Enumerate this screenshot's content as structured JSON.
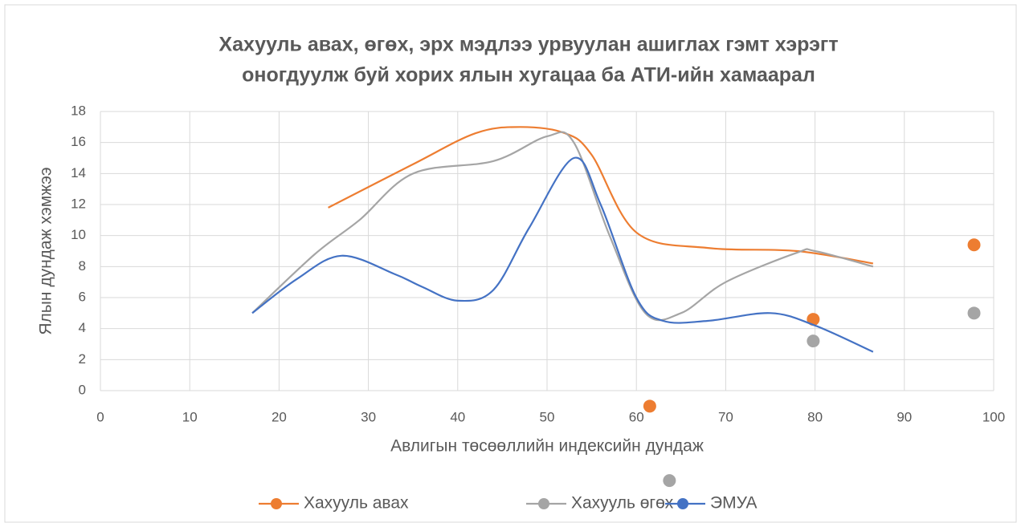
{
  "chart_data": {
    "type": "scatter",
    "title": [
      "Хахууль авах, өгөх, эрх мэдлээ урвуулан ашиглах гэмт хэрэгт",
      "оногдуулж буй хорих ялын хугацаа ба АТИ-ийн хамаарал"
    ],
    "x_label": "Авлигын төсөөллийн индексийн дундаж",
    "y_label": "Ялын дундаж хэмжээ",
    "xlim": [
      0,
      100
    ],
    "xticks": [
      0,
      10,
      20,
      30,
      40,
      50,
      60,
      70,
      80,
      90,
      100
    ],
    "ylim": [
      0,
      18
    ],
    "yticks": [
      0,
      2,
      4,
      6,
      8,
      10,
      12,
      14,
      16,
      18
    ],
    "grid": true,
    "smooth": true,
    "legend": "bottom",
    "series": [
      {
        "name": "Хахууль авах",
        "color": "#ed7d31",
        "x": [
          25.5,
          35,
          42,
          47,
          52,
          55,
          60,
          68,
          78,
          86.5
        ],
        "values": [
          11.8,
          14.6,
          16.6,
          17,
          16.6,
          15.2,
          10.2,
          9.2,
          9,
          8.2
        ],
        "marker_x": [
          61.5,
          79.8,
          97.8
        ],
        "marker_values": [
          -1,
          4.6,
          9.4
        ]
      },
      {
        "name": "Хахууль өгөх",
        "color": "#a5a5a5",
        "x": [
          17,
          24,
          29,
          35,
          44,
          50,
          53,
          57,
          61,
          65,
          70,
          78,
          80,
          86.5
        ],
        "values": [
          5,
          8.8,
          11,
          14,
          14.8,
          16.4,
          16,
          10,
          5,
          5,
          7,
          8.9,
          9,
          8
        ],
        "marker_x": [
          79.8,
          97.8,
          63.7
        ],
        "marker_values": [
          3.2,
          5,
          -5.8
        ]
      },
      {
        "name": "ЭМУА",
        "color": "#4472c4",
        "x": [
          17,
          22,
          27,
          33,
          36,
          40,
          44,
          48,
          53,
          56,
          60,
          63,
          68,
          75,
          80,
          86.5
        ],
        "values": [
          5,
          7.2,
          8.7,
          7.5,
          6.7,
          5.8,
          6.5,
          10.5,
          15,
          12,
          6,
          4.5,
          4.5,
          5,
          4.2,
          2.5
        ],
        "marker_x": [],
        "marker_values": []
      }
    ]
  }
}
